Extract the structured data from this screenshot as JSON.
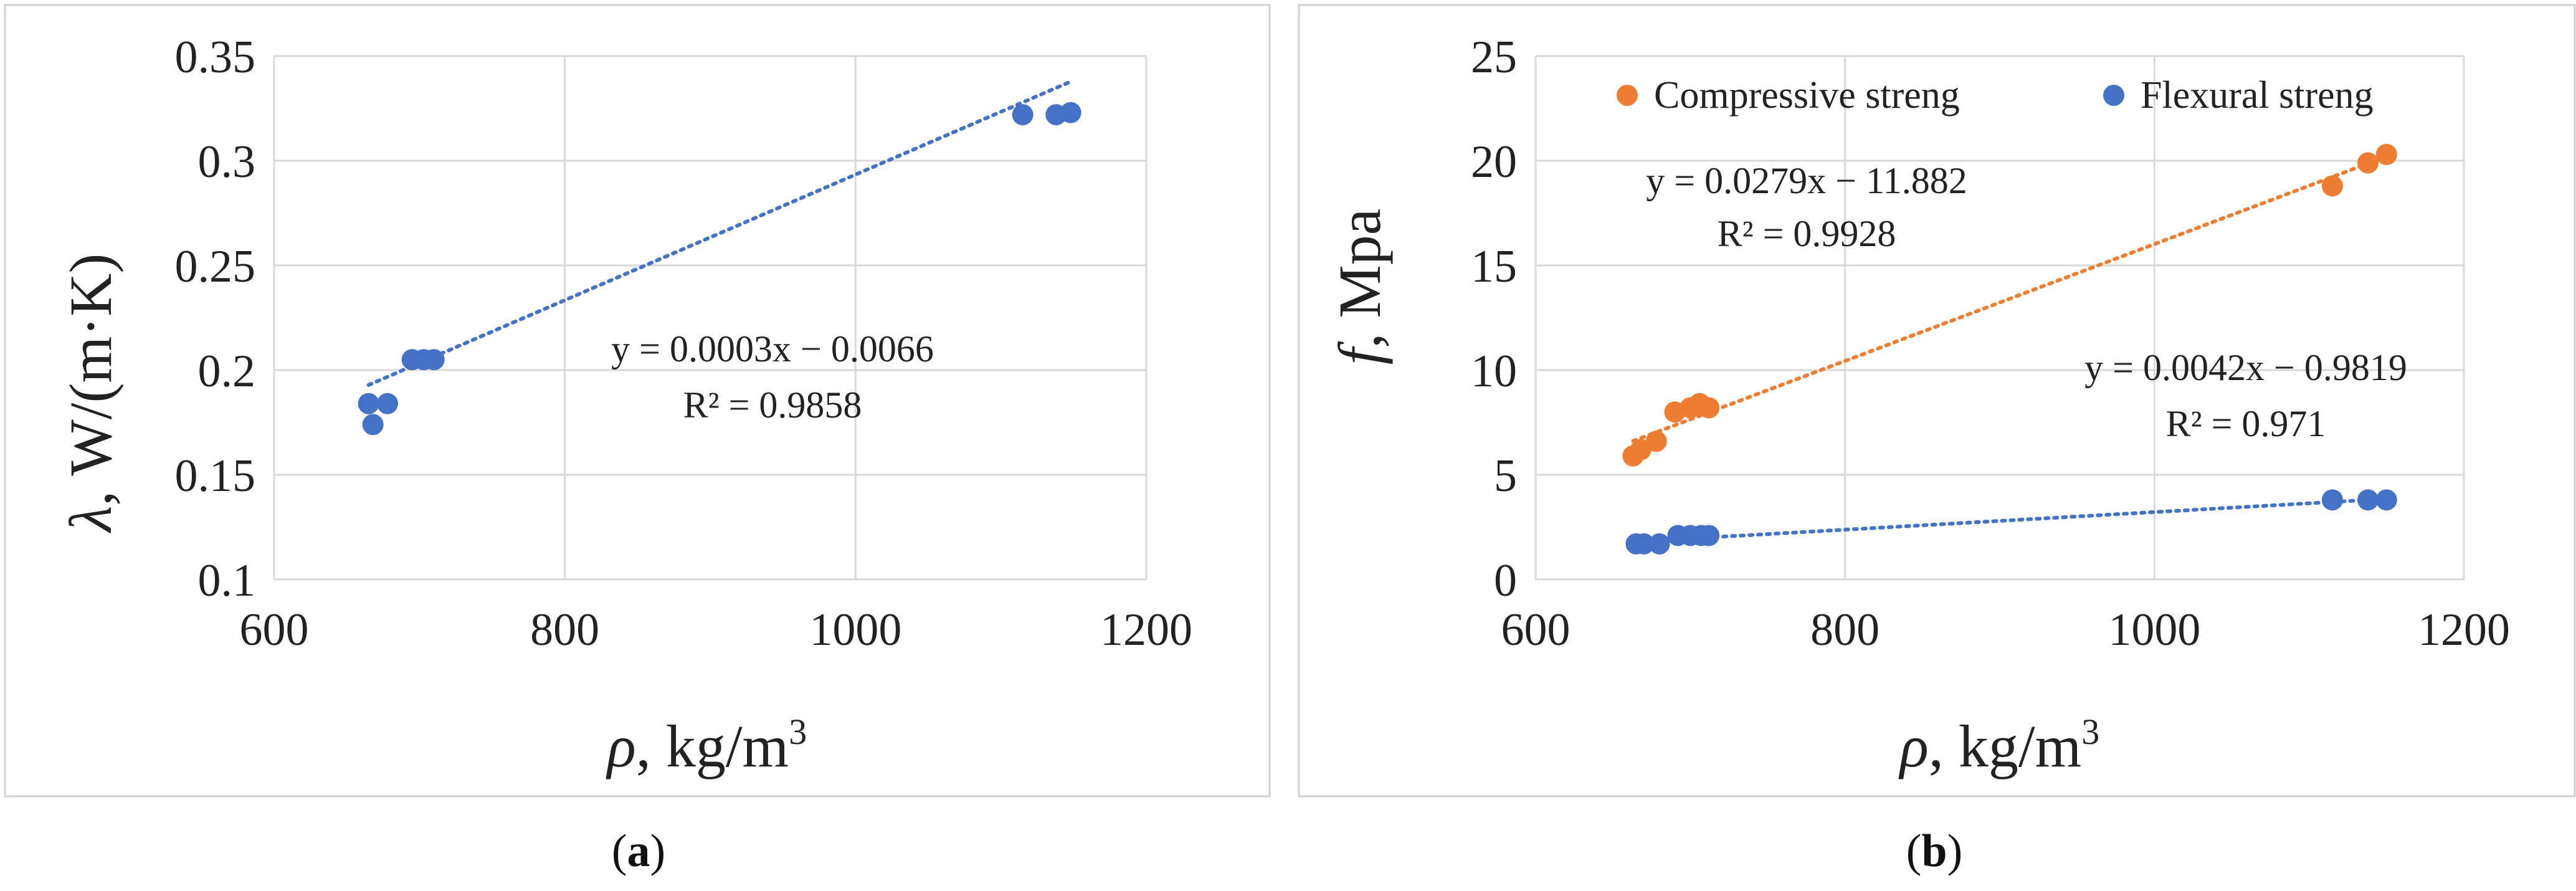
{
  "colors": {
    "blue": "#4472C4",
    "orange": "#ED7D31"
  },
  "chart_data": [
    {
      "type": "scatter",
      "panel_label": "a",
      "xlabel": "ρ, kg/m",
      "xlabel_sup": "3",
      "ylabel": "λ, W/(m·K)",
      "xlim": [
        600,
        1200
      ],
      "ylim": [
        0.1,
        0.35
      ],
      "xticks": [
        600,
        800,
        1000,
        1200
      ],
      "yticks": [
        0.1,
        0.15,
        0.2,
        0.25,
        0.3,
        0.35
      ],
      "xtick_labels": [
        "600",
        "800",
        "1000",
        "1200"
      ],
      "ytick_labels": [
        "0.1",
        "0.15",
        "0.2",
        "0.25",
        "0.3",
        "0.35"
      ],
      "grid": true,
      "series": [
        {
          "name": "λ",
          "color": "#4472C4",
          "x": [
            665,
            668,
            678,
            695,
            703,
            710,
            1115,
            1138,
            1148
          ],
          "y": [
            0.184,
            0.174,
            0.184,
            0.205,
            0.205,
            0.205,
            0.322,
            0.322,
            0.323
          ],
          "trendline": {
            "slope": 0.0003,
            "intercept": -0.0066,
            "equation": "y = 0.0003x − 0.0066",
            "r2": "R² = 0.9858"
          }
        }
      ]
    },
    {
      "type": "scatter",
      "panel_label": "b",
      "xlabel": "ρ, kg/m",
      "xlabel_sup": "3",
      "ylabel_italic": "f",
      "ylabel": ", Mpa",
      "xlim": [
        600,
        1200
      ],
      "ylim": [
        0,
        25
      ],
      "xticks": [
        600,
        800,
        1000,
        1200
      ],
      "yticks": [
        0,
        5,
        10,
        15,
        20,
        25
      ],
      "xtick_labels": [
        "600",
        "800",
        "1000",
        "1200"
      ],
      "ytick_labels": [
        "0",
        "5",
        "10",
        "15",
        "20",
        "25"
      ],
      "grid": true,
      "legend_position": "top",
      "series": [
        {
          "name": "Compressive streng",
          "color": "#ED7D31",
          "x": [
            663,
            668,
            678,
            690,
            700,
            706,
            712,
            1115,
            1138,
            1150
          ],
          "y": [
            5.9,
            6.2,
            6.6,
            8.0,
            8.2,
            8.4,
            8.2,
            18.8,
            19.9,
            20.3
          ],
          "trendline": {
            "slope": 0.0279,
            "intercept": -11.882,
            "equation": "y = 0.0279x − 11.882",
            "r2": "R² = 0.9928"
          }
        },
        {
          "name": "Flexural streng",
          "color": "#4472C4",
          "x": [
            665,
            670,
            680,
            692,
            700,
            707,
            712,
            1115,
            1138,
            1150
          ],
          "y": [
            1.7,
            1.7,
            1.7,
            2.1,
            2.1,
            2.1,
            2.1,
            3.8,
            3.8,
            3.8
          ],
          "trendline": {
            "slope": 0.0042,
            "intercept": -0.9819,
            "equation": "y = 0.0042x − 0.9819",
            "r2": "R² = 0.971"
          }
        }
      ]
    }
  ]
}
